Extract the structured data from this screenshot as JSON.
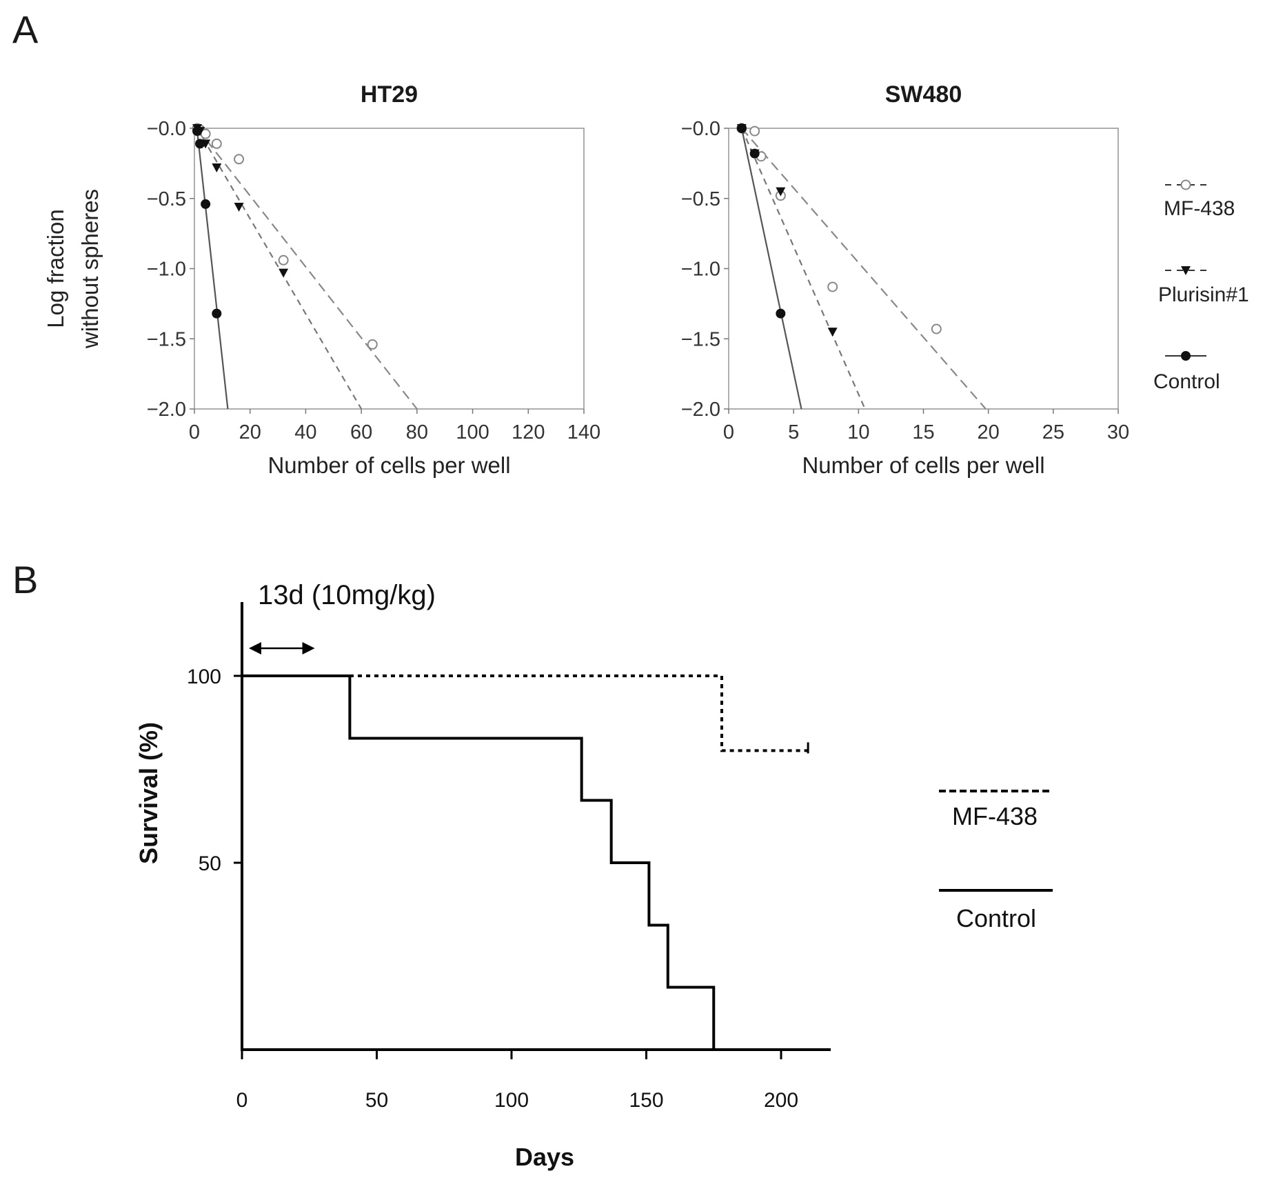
{
  "panel_a_label": "A",
  "panel_b_label": "B",
  "chart_data": [
    {
      "type": "scatter",
      "title": "HT29",
      "xlabel": "Number of cells per well",
      "ylabel_line1": "Log fraction",
      "ylabel_line2": "without spheres",
      "xlim": [
        0,
        140
      ],
      "ylim": [
        -2.0,
        0.0
      ],
      "xticks": [
        0,
        20,
        40,
        60,
        80,
        100,
        120,
        140
      ],
      "yticks": [
        -0.0,
        -0.5,
        -1.0,
        -1.5,
        -2.0
      ],
      "ytick_labels": [
        "−0.0",
        "−0.5",
        "−1.0",
        "−1.5",
        "−2.0"
      ],
      "series": [
        {
          "name": "MF-438",
          "marker": "open-circle",
          "line": "dashed",
          "x": [
            1,
            2,
            4,
            8,
            16,
            32,
            64
          ],
          "y": [
            0.0,
            -0.01,
            -0.04,
            -0.11,
            -0.22,
            -0.94,
            -1.54
          ],
          "fit_end": [
            80,
            -2.0
          ]
        },
        {
          "name": "Plurisin#1",
          "marker": "filled-triangle-down",
          "line": "dashed",
          "x": [
            1,
            2,
            4,
            8,
            16,
            32
          ],
          "y": [
            0.0,
            -0.02,
            -0.11,
            -0.28,
            -0.56,
            -1.03
          ],
          "fit_end": [
            60,
            -2.0
          ]
        },
        {
          "name": "Control",
          "marker": "filled-circle",
          "line": "solid",
          "x": [
            1,
            2,
            4,
            8
          ],
          "y": [
            -0.02,
            -0.11,
            -0.54,
            -1.32
          ],
          "fit_end": [
            12,
            -2.0
          ]
        }
      ]
    },
    {
      "type": "scatter",
      "title": "SW480",
      "xlabel": "Number of cells per well",
      "xlim": [
        0,
        30
      ],
      "ylim": [
        -2.0,
        0.0
      ],
      "xticks": [
        0,
        5,
        10,
        15,
        20,
        25,
        30
      ],
      "yticks": [
        -0.0,
        -0.5,
        -1.0,
        -1.5,
        -2.0
      ],
      "ytick_labels": [
        "−0.0",
        "−0.5",
        "−1.0",
        "−1.5",
        "−2.0"
      ],
      "series": [
        {
          "name": "MF-438",
          "marker": "open-circle",
          "line": "dashed",
          "x": [
            1,
            2,
            2.5,
            4,
            8,
            16
          ],
          "y": [
            0.0,
            -0.02,
            -0.2,
            -0.48,
            -1.13,
            -1.43
          ],
          "fit_end": [
            19.8,
            -2.0
          ]
        },
        {
          "name": "Plurisin#1",
          "marker": "filled-triangle-down",
          "line": "dashed",
          "x": [
            1,
            2,
            4,
            8
          ],
          "y": [
            0.0,
            -0.18,
            -0.45,
            -1.45
          ],
          "fit_end": [
            10.5,
            -2.0
          ]
        },
        {
          "name": "Control",
          "marker": "filled-circle",
          "line": "solid",
          "x": [
            1,
            2,
            4
          ],
          "y": [
            0.0,
            -0.18,
            -1.32
          ],
          "fit_end": [
            5.6,
            -2.0
          ]
        }
      ]
    },
    {
      "type": "line",
      "subtype": "kaplan-meier",
      "xlabel": "Days",
      "ylabel": "Survival (%)",
      "xlim": [
        0,
        220
      ],
      "ylim": [
        0,
        120
      ],
      "xticks": [
        0,
        50,
        100,
        150,
        200
      ],
      "yticks": [
        50,
        100
      ],
      "annotation": "13d (10mg/kg)",
      "annotation_range": [
        0,
        27
      ],
      "series": [
        {
          "name": "MF-438",
          "line": "dotted",
          "steps": [
            [
              0,
              100
            ],
            [
              178,
              100
            ],
            [
              178,
              80
            ],
            [
              210,
              80
            ]
          ]
        },
        {
          "name": "Control",
          "line": "solid",
          "steps": [
            [
              0,
              100
            ],
            [
              40,
              100
            ],
            [
              40,
              83.3
            ],
            [
              126,
              83.3
            ],
            [
              126,
              66.7
            ],
            [
              137,
              66.7
            ],
            [
              137,
              50
            ],
            [
              151,
              50
            ],
            [
              151,
              33.3
            ],
            [
              158,
              33.3
            ],
            [
              158,
              16.7
            ],
            [
              175,
              16.7
            ],
            [
              175,
              0
            ]
          ]
        }
      ]
    }
  ]
}
